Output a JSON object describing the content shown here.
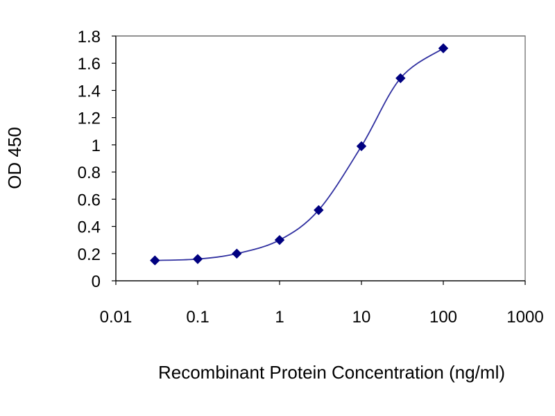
{
  "chart_data": {
    "type": "line",
    "title": "",
    "xlabel": "Recombinant Protein Concentration (ng/ml)",
    "ylabel": "OD 450",
    "x_scale": "log",
    "xlim": [
      0.01,
      1000
    ],
    "ylim": [
      0,
      1.8
    ],
    "x_ticks": [
      0.01,
      0.1,
      1,
      10,
      100,
      1000
    ],
    "x_tick_labels": [
      "0.01",
      "0.1",
      "1",
      "10",
      "100",
      "1000"
    ],
    "y_ticks": [
      0,
      0.2,
      0.4,
      0.6,
      0.8,
      1,
      1.2,
      1.4,
      1.6,
      1.8
    ],
    "y_tick_labels": [
      "0",
      "0.2",
      "0.4",
      "0.6",
      "0.8",
      "1",
      "1.2",
      "1.4",
      "1.6",
      "1.8"
    ],
    "grid": "horizontal",
    "legend": "none",
    "series": [
      {
        "x": [
          0.03,
          0.1,
          0.3,
          1,
          3,
          10,
          30,
          100
        ],
        "y": [
          0.15,
          0.16,
          0.2,
          0.3,
          0.52,
          0.99,
          1.49,
          1.71
        ]
      }
    ],
    "colors": {
      "line": "#3030a0",
      "marker": "#000080",
      "grid": "#000000",
      "plot_background": "#ffffff"
    }
  }
}
